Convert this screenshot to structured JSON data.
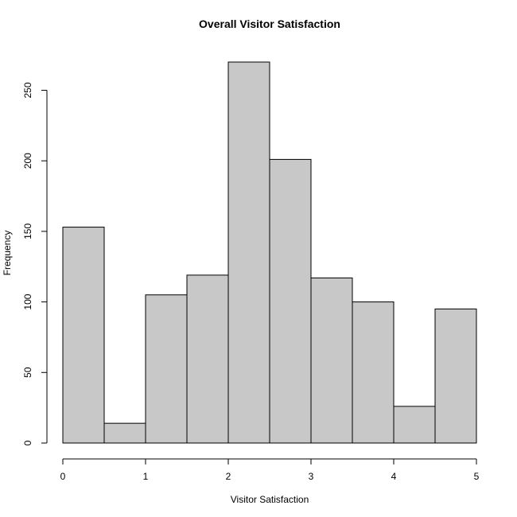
{
  "chart_data": {
    "type": "bar",
    "title": "Overall Visitor Satisfaction",
    "xlabel": "Visitor Satisfaction",
    "ylabel": "Frequency",
    "bin_edges": [
      0,
      0.5,
      1,
      1.5,
      2,
      2.5,
      3,
      3.5,
      4,
      4.5,
      5
    ],
    "values": [
      153,
      14,
      105,
      119,
      270,
      201,
      117,
      100,
      26,
      95
    ],
    "xlim": [
      0,
      5
    ],
    "ylim": [
      0,
      270
    ],
    "x_ticks": [
      "0",
      "1",
      "2",
      "3",
      "4",
      "5"
    ],
    "y_ticks": [
      "0",
      "50",
      "100",
      "150",
      "200",
      "250"
    ],
    "grid": false,
    "bar_color": "#c8c8c8",
    "edge_color": "#000000"
  }
}
